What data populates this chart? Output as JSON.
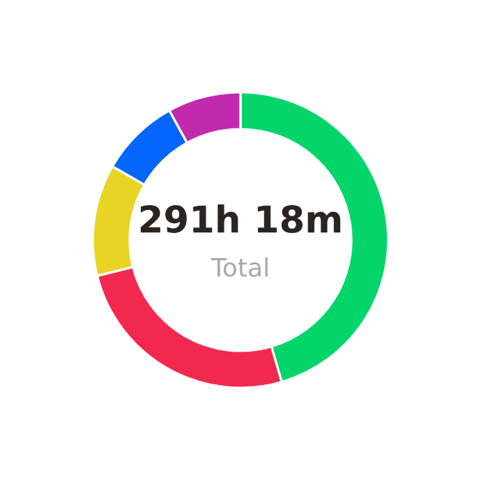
{
  "chart_data": {
    "type": "donut",
    "title": "291h 18m",
    "subtitle": "Total",
    "categories": [
      null,
      null,
      null,
      null,
      null
    ],
    "values": [
      45.5,
      25.6,
      12.2,
      8.7,
      8.0
    ],
    "colors": [
      "#03d56a",
      "#f2294e",
      "#e8d424",
      "#0466fb",
      "#c12aad"
    ],
    "legend": false
  }
}
